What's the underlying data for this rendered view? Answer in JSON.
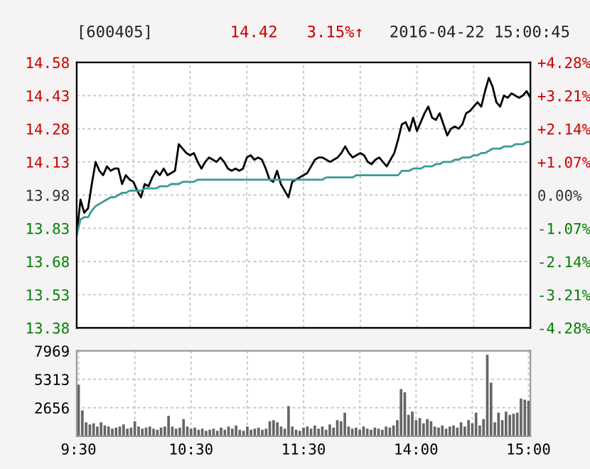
{
  "chart_data": [
    {
      "type": "line",
      "title": "[600405]",
      "annotations": [
        "14.42",
        "3.15%↑",
        "2016-04-22 15:00:45"
      ],
      "categories": [
        null,
        null,
        null,
        null,
        null,
        null,
        null,
        null,
        null,
        null,
        null,
        null,
        null,
        null,
        null,
        null,
        null,
        null,
        null,
        null,
        null,
        null,
        null,
        null,
        null,
        null,
        null,
        null,
        null,
        null,
        null,
        null,
        null,
        null,
        null,
        null,
        null,
        null,
        null,
        null,
        null,
        null,
        null,
        null,
        null,
        null,
        null,
        null,
        null,
        null,
        null,
        null,
        null,
        null,
        null,
        null,
        null,
        null,
        null,
        null,
        null,
        null,
        null,
        null,
        null,
        null,
        null,
        null,
        null,
        null,
        null,
        null,
        null,
        null,
        null,
        null,
        null,
        null,
        null,
        null,
        null,
        null,
        null,
        null,
        null,
        null,
        null,
        null,
        null,
        null,
        null,
        null,
        null,
        null,
        null,
        null,
        null,
        null,
        null,
        null,
        null,
        null,
        null,
        null,
        null,
        null,
        null,
        null,
        null,
        null,
        null,
        null,
        null,
        null,
        null,
        null,
        null,
        null,
        null,
        null,
        null
      ],
      "ylim": [
        13.38,
        14.58
      ],
      "yticks": [
        {
          "value": 13.38,
          "label": "13.38"
        },
        {
          "value": 13.53,
          "label": "13.53"
        },
        {
          "value": 13.68,
          "label": "13.68"
        },
        {
          "value": 13.83,
          "label": "13.83"
        },
        {
          "value": 13.98,
          "label": "13.98"
        },
        {
          "value": 14.13,
          "label": "14.13"
        },
        {
          "value": 14.28,
          "label": "14.28"
        },
        {
          "value": 14.43,
          "label": "14.43"
        },
        {
          "value": 14.58,
          "label": "14.58"
        }
      ],
      "y2lim": [
        -4.28,
        4.28
      ],
      "y2ticks": [
        {
          "value": -4.28,
          "label": "-4.28%"
        },
        {
          "value": -3.21,
          "label": "-3.21%"
        },
        {
          "value": -2.14,
          "label": "-2.14%"
        },
        {
          "value": -1.07,
          "label": "-1.07%"
        },
        {
          "value": 0,
          "label": "0.00%"
        },
        {
          "value": 1.07,
          "label": "+1.07%"
        },
        {
          "value": 2.14,
          "label": "+2.14%"
        },
        {
          "value": 3.21,
          "label": "+3.21%"
        },
        {
          "value": 4.28,
          "label": "+4.28%"
        }
      ],
      "tick_labels": "y",
      "grid": true,
      "marker": "none",
      "line_style": "solid",
      "series": [
        {
          "color": "#000000",
          "values": [
            13.8,
            13.96,
            13.9,
            13.92,
            14.03,
            14.13,
            14.09,
            14.07,
            14.11,
            14.09,
            14.1,
            14.1,
            14.03,
            14.07,
            14.05,
            14.04,
            14.0,
            13.97,
            14.03,
            14.02,
            14.06,
            14.09,
            14.07,
            14.1,
            14.07,
            14.08,
            14.09,
            14.21,
            14.19,
            14.17,
            14.16,
            14.17,
            14.13,
            14.1,
            14.13,
            14.15,
            14.14,
            14.13,
            14.15,
            14.13,
            14.1,
            14.09,
            14.1,
            14.09,
            14.1,
            14.15,
            14.16,
            14.14,
            14.15,
            14.14,
            14.1,
            14.05,
            14.04,
            14.09,
            14.03,
            14.0,
            13.97,
            14.04,
            14.05,
            14.06,
            14.07,
            14.08,
            14.11,
            14.14,
            14.15,
            14.15,
            14.14,
            14.13,
            14.14,
            14.15,
            14.17,
            14.2,
            14.17,
            14.15,
            14.16,
            14.17,
            14.16,
            14.13,
            14.12,
            14.14,
            14.15,
            14.13,
            14.11,
            14.14,
            14.17,
            14.23,
            14.3,
            14.31,
            14.27,
            14.33,
            14.27,
            14.31,
            14.35,
            14.38,
            14.33,
            14.32,
            14.35,
            14.3,
            14.25,
            14.28,
            14.29,
            14.28,
            14.3,
            14.35,
            14.36,
            14.38,
            14.4,
            14.38,
            14.45,
            14.51,
            14.47,
            14.4,
            14.38,
            14.43,
            14.42,
            14.44,
            14.43,
            14.42,
            14.43,
            14.45,
            14.42
          ]
        },
        {
          "color": "#3a9a96",
          "values": [
            13.8,
            13.87,
            13.88,
            13.88,
            13.91,
            13.93,
            13.94,
            13.95,
            13.96,
            13.97,
            13.97,
            13.98,
            13.99,
            13.99,
            14.0,
            14.0,
            14.0,
            14.0,
            14.01,
            14.01,
            14.01,
            14.01,
            14.02,
            14.02,
            14.02,
            14.03,
            14.03,
            14.03,
            14.04,
            14.04,
            14.04,
            14.04,
            14.05,
            14.05,
            14.05,
            14.05,
            14.05,
            14.05,
            14.05,
            14.05,
            14.05,
            14.05,
            14.05,
            14.05,
            14.05,
            14.05,
            14.05,
            14.05,
            14.05,
            14.05,
            14.05,
            14.05,
            14.05,
            14.05,
            14.05,
            14.05,
            14.05,
            14.05,
            14.05,
            14.05,
            14.05,
            14.05,
            14.05,
            14.05,
            14.05,
            14.05,
            14.06,
            14.06,
            14.06,
            14.06,
            14.06,
            14.06,
            14.06,
            14.06,
            14.07,
            14.07,
            14.07,
            14.07,
            14.07,
            14.07,
            14.07,
            14.07,
            14.07,
            14.07,
            14.07,
            14.07,
            14.09,
            14.09,
            14.09,
            14.1,
            14.1,
            14.1,
            14.11,
            14.11,
            14.11,
            14.12,
            14.12,
            14.13,
            14.13,
            14.13,
            14.14,
            14.14,
            14.15,
            14.15,
            14.15,
            14.16,
            14.16,
            14.17,
            14.17,
            14.18,
            14.19,
            14.19,
            14.19,
            14.2,
            14.2,
            14.2,
            14.21,
            14.21,
            14.21,
            14.22,
            14.22
          ]
        }
      ]
    },
    {
      "type": "bar",
      "categories": [
        "9:30",
        null,
        null,
        null,
        null,
        null,
        null,
        null,
        null,
        null,
        null,
        null,
        null,
        null,
        null,
        null,
        null,
        null,
        null,
        null,
        null,
        null,
        null,
        null,
        null,
        null,
        null,
        null,
        null,
        null,
        "10:30",
        null,
        null,
        null,
        null,
        null,
        null,
        null,
        null,
        null,
        null,
        null,
        null,
        null,
        null,
        null,
        null,
        null,
        null,
        null,
        null,
        null,
        null,
        null,
        null,
        null,
        null,
        null,
        null,
        null,
        "11:30",
        null,
        null,
        null,
        null,
        null,
        null,
        null,
        null,
        null,
        null,
        null,
        null,
        null,
        null,
        null,
        null,
        null,
        null,
        null,
        null,
        null,
        null,
        null,
        null,
        null,
        null,
        null,
        null,
        null,
        "14:00",
        null,
        null,
        null,
        null,
        null,
        null,
        null,
        null,
        null,
        null,
        null,
        null,
        null,
        null,
        null,
        null,
        null,
        null,
        null,
        null,
        null,
        null,
        null,
        null,
        null,
        null,
        null,
        null,
        null,
        "15:00"
      ],
      "ylim": [
        0,
        7969
      ],
      "yticks": [
        {
          "value": 0,
          "label": null
        },
        2656,
        5313,
        7969
      ],
      "grid": true,
      "series": [
        {
          "color": "#666666",
          "values": [
            4800,
            2400,
            1300,
            1100,
            1200,
            900,
            1300,
            1000,
            900,
            700,
            800,
            900,
            1100,
            700,
            800,
            1400,
            900,
            700,
            800,
            900,
            700,
            600,
            800,
            900,
            1900,
            900,
            700,
            800,
            1600,
            900,
            700,
            800,
            600,
            700,
            500,
            600,
            700,
            500,
            800,
            600,
            900,
            700,
            1000,
            600,
            500,
            900,
            600,
            700,
            800,
            600,
            700,
            1400,
            1500,
            1300,
            900,
            700,
            2800,
            900,
            600,
            500,
            800,
            900,
            700,
            1000,
            700,
            900,
            600,
            1100,
            800,
            1500,
            1400,
            2200,
            900,
            700,
            800,
            600,
            900,
            700,
            600,
            800,
            700,
            600,
            900,
            800,
            1000,
            1500,
            4400,
            4100,
            2000,
            2300,
            1500,
            1700,
            1200,
            1600,
            1400,
            900,
            800,
            1000,
            700,
            900,
            1000,
            800,
            1300,
            900,
            1500,
            1200,
            2200,
            1000,
            1600,
            7600,
            5000,
            1300,
            2200,
            1500,
            2300,
            2000,
            2100,
            2200,
            3500,
            3400,
            3300
          ]
        }
      ]
    }
  ]
}
